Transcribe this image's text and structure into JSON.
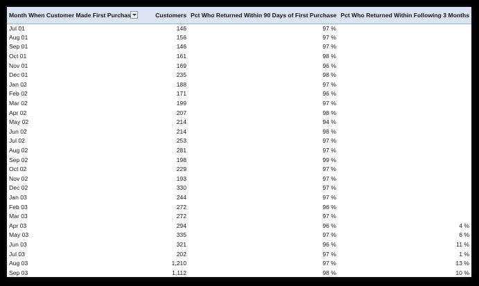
{
  "columns": [
    "Month When Customer Made First Purchase",
    "Customers",
    "Pct Who Returned Within 90 Days of First Purchase",
    "Pct Who Returned Within Following 3 Months"
  ],
  "rows": [
    {
      "month": "Jul 01",
      "customers": "146",
      "pct90": "97 %",
      "pct3m": ""
    },
    {
      "month": "Aug 01",
      "customers": "156",
      "pct90": "97 %",
      "pct3m": ""
    },
    {
      "month": "Sep 01",
      "customers": "146",
      "pct90": "97 %",
      "pct3m": ""
    },
    {
      "month": "Oct 01",
      "customers": "161",
      "pct90": "98 %",
      "pct3m": ""
    },
    {
      "month": "Nov 01",
      "customers": "169",
      "pct90": "96 %",
      "pct3m": ""
    },
    {
      "month": "Dec 01",
      "customers": "235",
      "pct90": "98 %",
      "pct3m": ""
    },
    {
      "month": "Jan 02",
      "customers": "188",
      "pct90": "97 %",
      "pct3m": ""
    },
    {
      "month": "Feb 02",
      "customers": "171",
      "pct90": "96 %",
      "pct3m": ""
    },
    {
      "month": "Mar 02",
      "customers": "199",
      "pct90": "97 %",
      "pct3m": ""
    },
    {
      "month": "Apr 02",
      "customers": "207",
      "pct90": "98 %",
      "pct3m": ""
    },
    {
      "month": "May 02",
      "customers": "214",
      "pct90": "94 %",
      "pct3m": ""
    },
    {
      "month": "Jun 02",
      "customers": "214",
      "pct90": "98 %",
      "pct3m": ""
    },
    {
      "month": "Jul 02",
      "customers": "253",
      "pct90": "97 %",
      "pct3m": ""
    },
    {
      "month": "Aug 02",
      "customers": "281",
      "pct90": "97 %",
      "pct3m": ""
    },
    {
      "month": "Sep 02",
      "customers": "198",
      "pct90": "99 %",
      "pct3m": ""
    },
    {
      "month": "Oct 02",
      "customers": "229",
      "pct90": "97 %",
      "pct3m": ""
    },
    {
      "month": "Nov 02",
      "customers": "193",
      "pct90": "97 %",
      "pct3m": ""
    },
    {
      "month": "Dec 02",
      "customers": "330",
      "pct90": "97 %",
      "pct3m": ""
    },
    {
      "month": "Jan 03",
      "customers": "244",
      "pct90": "97 %",
      "pct3m": ""
    },
    {
      "month": "Feb 03",
      "customers": "272",
      "pct90": "96 %",
      "pct3m": ""
    },
    {
      "month": "Mar 03",
      "customers": "272",
      "pct90": "97 %",
      "pct3m": ""
    },
    {
      "month": "Apr 03",
      "customers": "294",
      "pct90": "96 %",
      "pct3m": "4 %"
    },
    {
      "month": "May 03",
      "customers": "335",
      "pct90": "97 %",
      "pct3m": "6 %"
    },
    {
      "month": "Jun 03",
      "customers": "321",
      "pct90": "96 %",
      "pct3m": "11 %"
    },
    {
      "month": "Jul 03",
      "customers": "202",
      "pct90": "97 %",
      "pct3m": "1 %"
    },
    {
      "month": "Aug 03",
      "customers": "1,210",
      "pct90": "97 %",
      "pct3m": "13 %"
    },
    {
      "month": "Sep 03",
      "customers": "1,112",
      "pct90": "98 %",
      "pct3m": "10 %"
    }
  ],
  "colors": {
    "header_bg": "#dbe5f1",
    "header_border": "#95b3d7",
    "frame_bg": "#000000"
  },
  "icons": {
    "filter": "dropdown-filter-icon"
  }
}
